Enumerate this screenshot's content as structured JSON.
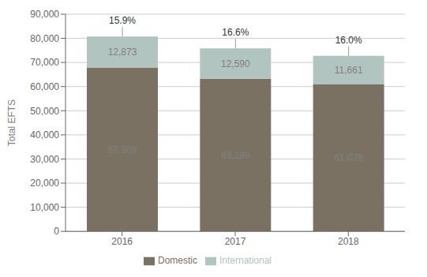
{
  "chart_data": {
    "type": "bar",
    "stacked": true,
    "data_labels": true,
    "grid": true,
    "legend": "bottom",
    "ylabel": "Total EFTS",
    "categories": [
      "2016",
      "2017",
      "2018"
    ],
    "series": [
      {
        "name": "Domestic",
        "color": "#7a7163",
        "values": [
          67909,
          63289,
          61079
        ],
        "value_labels": [
          "67,909",
          "63,289",
          "61,079"
        ]
      },
      {
        "name": "International",
        "color": "#b2c4bf",
        "values": [
          12873,
          12590,
          11661
        ],
        "value_labels": [
          "12,873",
          "12,590",
          "11,661"
        ]
      }
    ],
    "annotations": [
      {
        "x": "2016",
        "text": "15.9%"
      },
      {
        "x": "2017",
        "text": "16.6%"
      },
      {
        "x": "2018",
        "text": "16.0%"
      }
    ],
    "ylim": [
      0,
      90000
    ],
    "yticks": [
      0,
      {
        "value": 10000,
        "label": "10,000"
      },
      {
        "value": 20000,
        "label": "20,000"
      },
      {
        "value": 30000,
        "label": "30,000"
      },
      {
        "value": 40000,
        "label": "40,000"
      },
      {
        "value": 50000,
        "label": "50,000"
      },
      {
        "value": 60000,
        "label": "60,000"
      },
      {
        "value": 70000,
        "label": "70,000"
      },
      {
        "value": 80000,
        "label": "80,000"
      },
      {
        "value": 90000,
        "label": "90,000"
      }
    ]
  }
}
